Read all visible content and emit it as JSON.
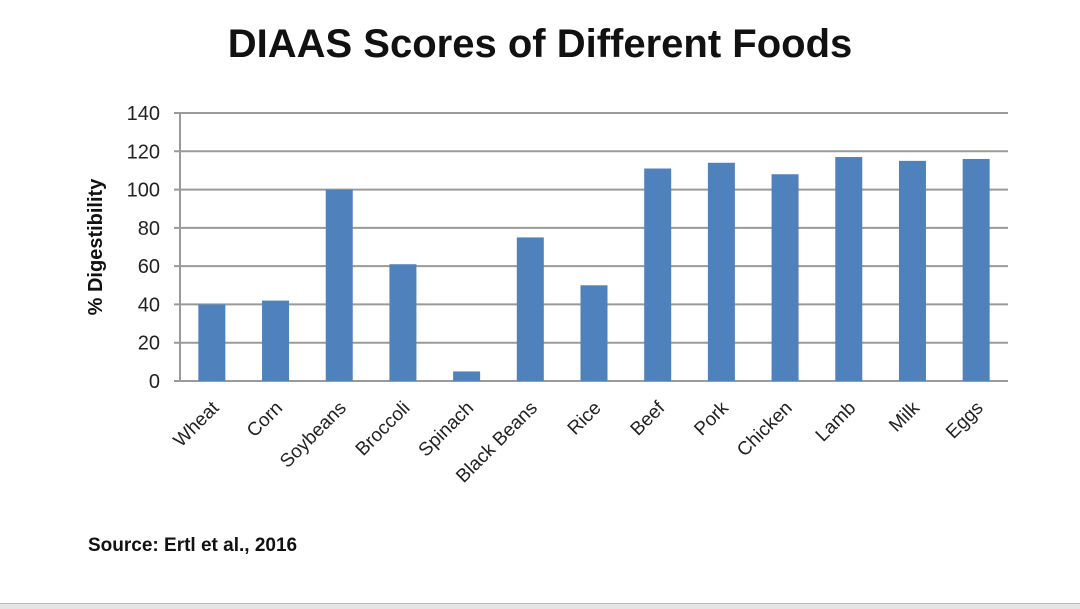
{
  "chart_data": {
    "type": "bar",
    "title": "DIAAS Scores of Different Foods",
    "xlabel": "",
    "ylabel": "% Digestibility",
    "ylim": [
      0,
      140
    ],
    "yticks": [
      0,
      20,
      40,
      60,
      80,
      100,
      120,
      140
    ],
    "grid": true,
    "bar_color": "#4f81bd",
    "categories": [
      "Wheat",
      "Corn",
      "Soybeans",
      "Broccoli",
      "Spinach",
      "Black Beans",
      "Rice",
      "Beef",
      "Pork",
      "Chicken",
      "Lamb",
      "Milk",
      "Eggs"
    ],
    "values": [
      40,
      42,
      100,
      61,
      5,
      75,
      50,
      111,
      114,
      108,
      117,
      115,
      116
    ]
  },
  "source": "Source: Ertl et al., 2016"
}
